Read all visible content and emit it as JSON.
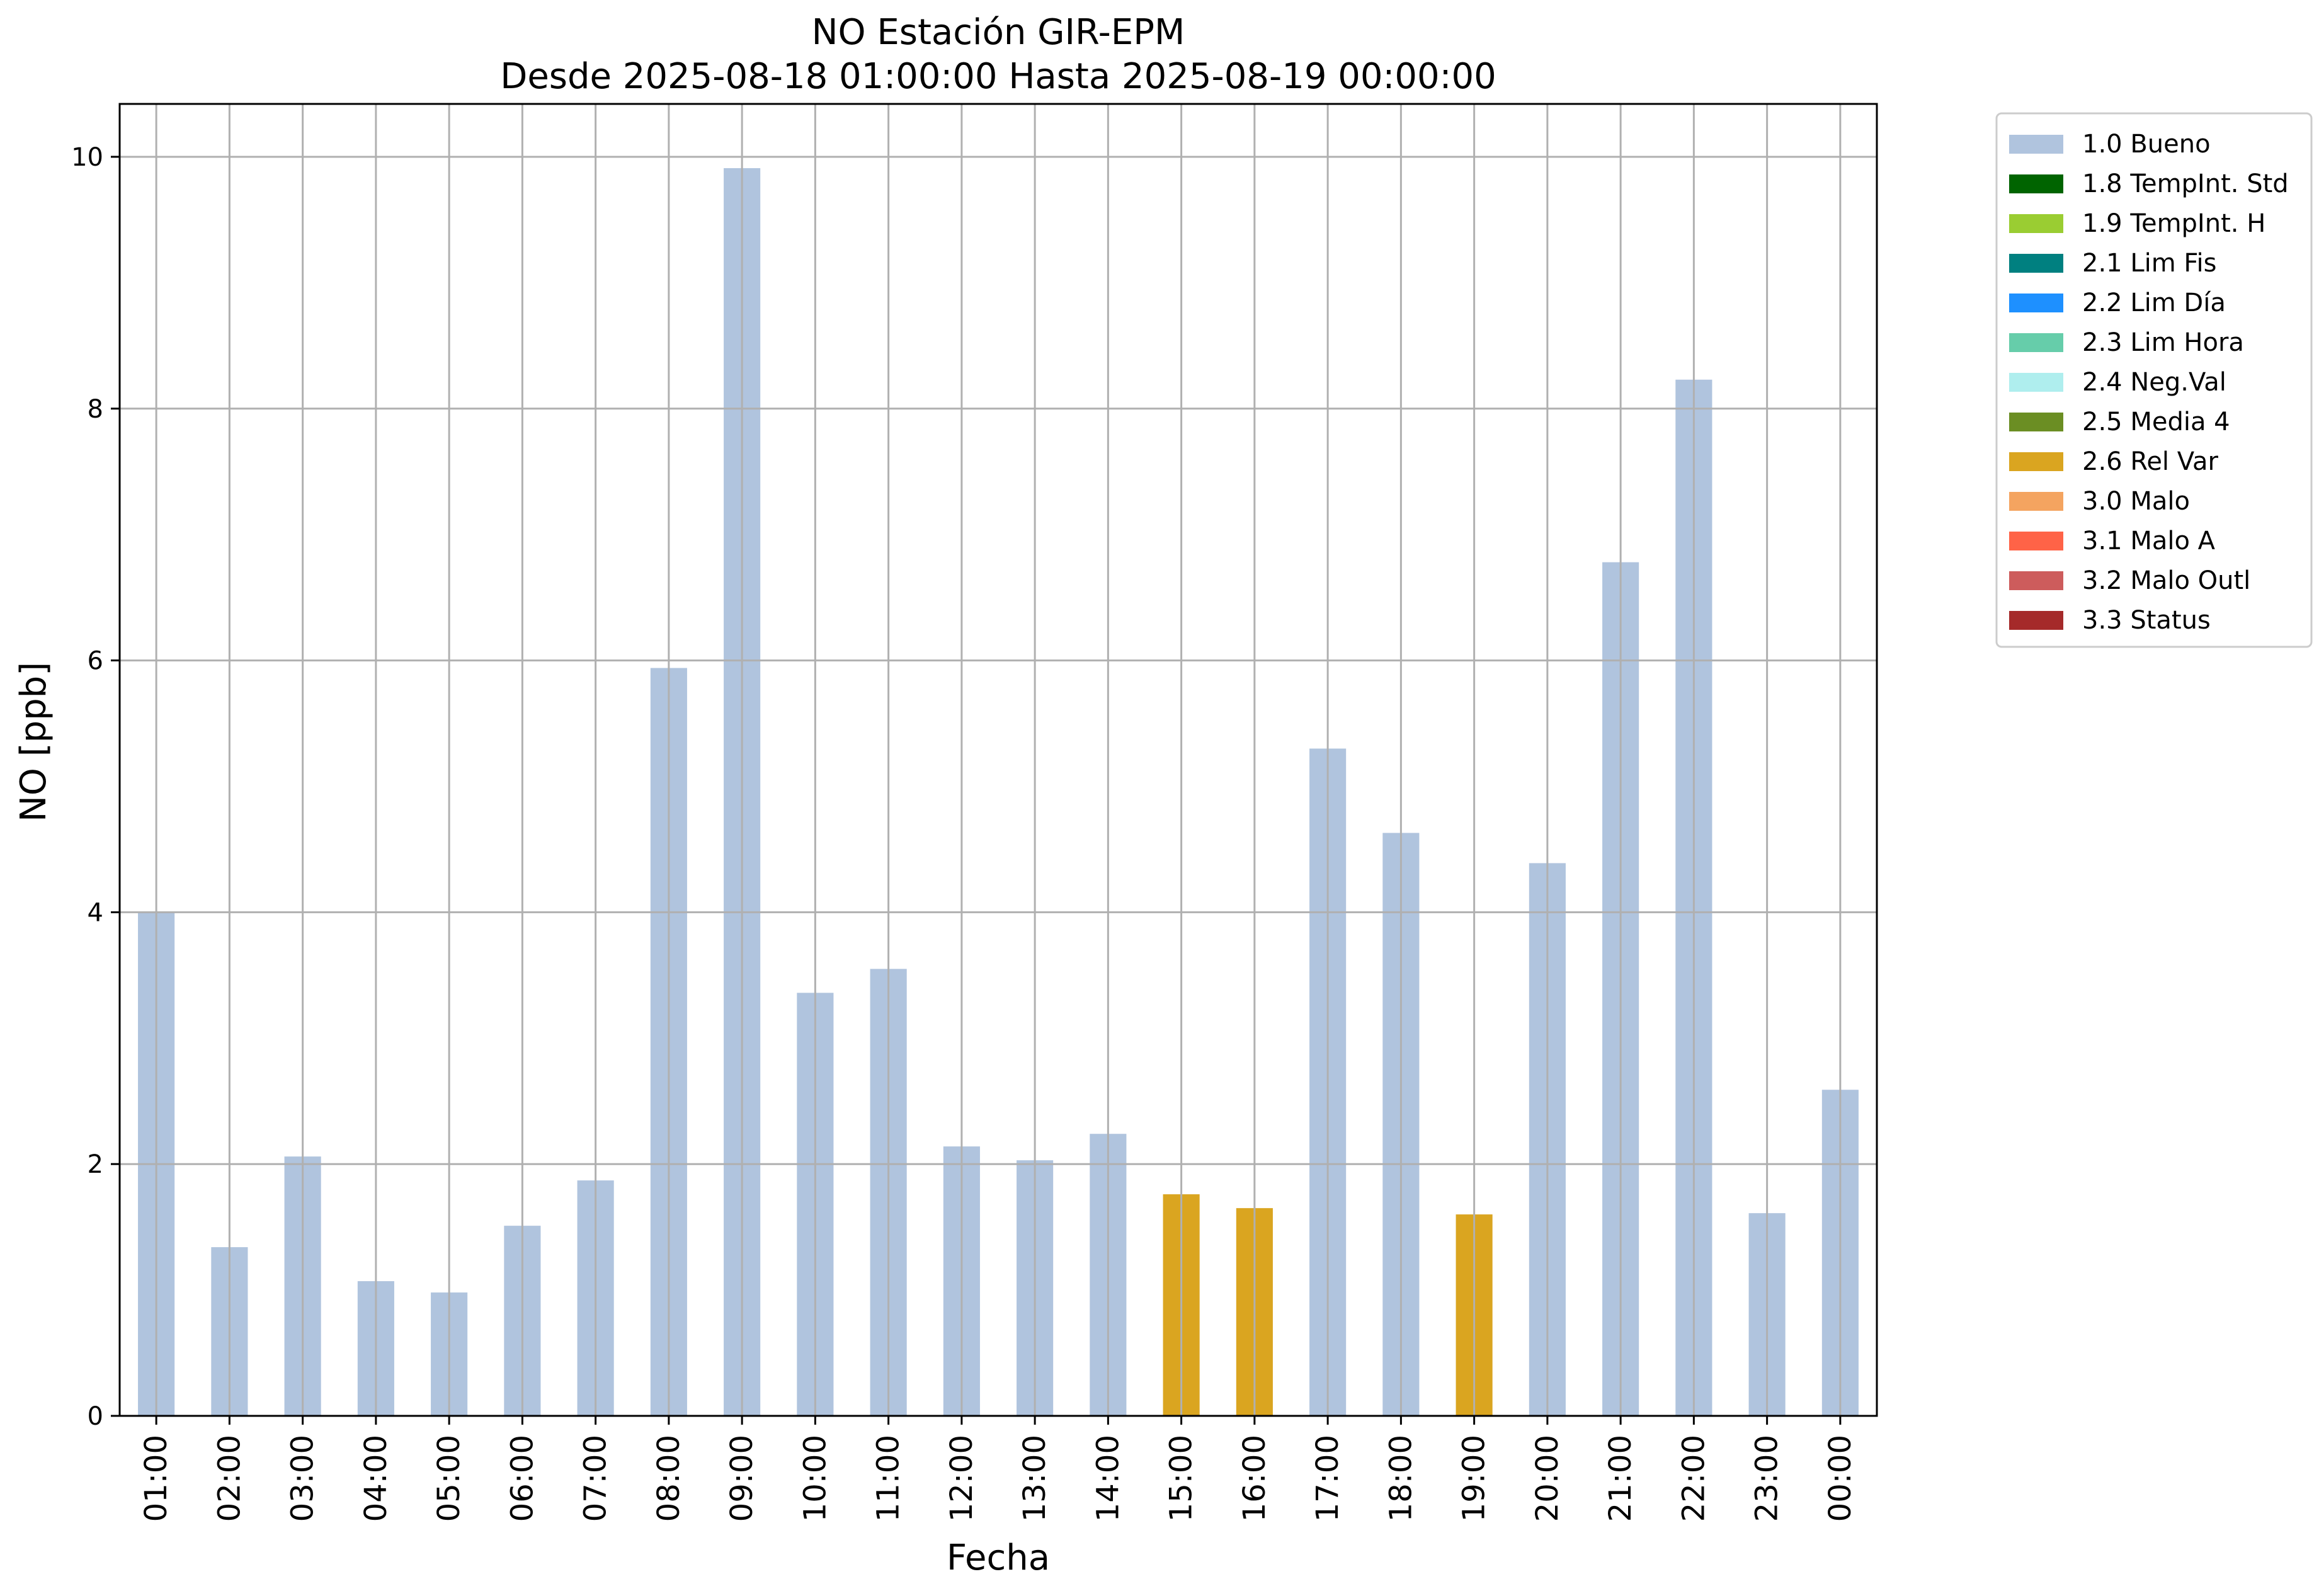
{
  "chart_data": {
    "type": "bar",
    "title_line1": "NO Estación GIR-EPM",
    "title_line2": "Desde 2025-08-18 01:00:00 Hasta 2025-08-19 00:00:00",
    "xlabel": "Fecha",
    "ylabel": "NO [ppb]",
    "ylim": [
      0,
      10.42
    ],
    "yticks": [
      0,
      2,
      4,
      6,
      8,
      10
    ],
    "grid": true,
    "legend_position": "outside-top-right",
    "categories": [
      "01:00",
      "02:00",
      "03:00",
      "04:00",
      "05:00",
      "06:00",
      "07:00",
      "08:00",
      "09:00",
      "10:00",
      "11:00",
      "12:00",
      "13:00",
      "14:00",
      "15:00",
      "16:00",
      "17:00",
      "18:00",
      "19:00",
      "20:00",
      "21:00",
      "22:00",
      "23:00",
      "00:00"
    ],
    "values": [
      4.0,
      1.34,
      2.06,
      1.07,
      0.98,
      1.51,
      1.87,
      5.94,
      9.91,
      3.36,
      3.55,
      2.14,
      2.03,
      2.24,
      1.76,
      1.65,
      5.3,
      4.63,
      1.6,
      4.39,
      6.78,
      8.23,
      1.61,
      2.59
    ],
    "flags": [
      "1.0 Bueno",
      "1.0 Bueno",
      "1.0 Bueno",
      "1.0 Bueno",
      "1.0 Bueno",
      "1.0 Bueno",
      "1.0 Bueno",
      "1.0 Bueno",
      "1.0 Bueno",
      "1.0 Bueno",
      "1.0 Bueno",
      "1.0 Bueno",
      "1.0 Bueno",
      "1.0 Bueno",
      "2.6 Rel Var",
      "2.6 Rel Var",
      "1.0 Bueno",
      "1.0 Bueno",
      "2.6 Rel Var",
      "1.0 Bueno",
      "1.0 Bueno",
      "1.0 Bueno",
      "1.0 Bueno",
      "1.0 Bueno"
    ],
    "legend": [
      {
        "label": "1.0 Bueno",
        "color": "#b0c4de"
      },
      {
        "label": "1.8 TempInt. Std",
        "color": "#006400"
      },
      {
        "label": "1.9 TempInt. H",
        "color": "#9acd32"
      },
      {
        "label": "2.1 Lim Fis",
        "color": "#008080"
      },
      {
        "label": "2.2 Lim Día",
        "color": "#1e90ff"
      },
      {
        "label": "2.3 Lim Hora",
        "color": "#66cdaa"
      },
      {
        "label": "2.4 Neg.Val",
        "color": "#afeeee"
      },
      {
        "label": "2.5 Media 4",
        "color": "#6b8e23"
      },
      {
        "label": "2.6 Rel Var",
        "color": "#daa520"
      },
      {
        "label": "3.0 Malo",
        "color": "#f4a460"
      },
      {
        "label": "3.1 Malo A",
        "color": "#ff6347"
      },
      {
        "label": "3.2 Malo Outl",
        "color": "#cd5c5c"
      },
      {
        "label": "3.3 Status",
        "color": "#a52a2a"
      }
    ]
  }
}
